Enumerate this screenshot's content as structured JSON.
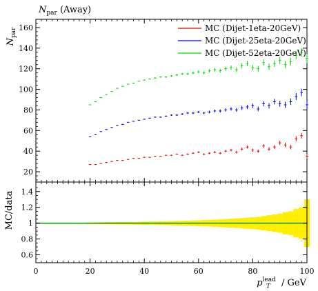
{
  "chart_data": [
    {
      "type": "scatter",
      "title": "N_par (Away)",
      "title_main": "N",
      "title_sub": "par",
      "title_suffix": " (Away)",
      "ylabel_main": "N",
      "ylabel_sub": "par",
      "xlim": [
        0,
        100
      ],
      "ylim": [
        10,
        168
      ],
      "yticks": [
        20,
        40,
        60,
        80,
        100,
        120,
        140,
        160
      ],
      "ytick_labels": [
        "20",
        "40",
        "60",
        "80",
        "100",
        "120",
        "140",
        "160"
      ],
      "grid": false,
      "legend_position": "top-right",
      "series": [
        {
          "name": "MC (Dijet-1eta-20GeV)",
          "color": "#ee0000",
          "x": [
            20,
            22,
            24,
            26,
            28,
            30,
            32,
            34,
            36,
            38,
            40,
            42,
            44,
            46,
            48,
            50,
            52,
            54,
            56,
            58,
            60,
            62,
            64,
            66,
            68,
            70,
            72,
            74,
            76,
            78,
            80,
            82,
            84,
            86,
            88,
            90,
            92,
            94,
            96,
            98,
            100
          ],
          "y": [
            27,
            27,
            28,
            29,
            30,
            31,
            31,
            32,
            33,
            33,
            34,
            34,
            35,
            35,
            36,
            36,
            37,
            36,
            37,
            38,
            39,
            37,
            38,
            39,
            38,
            40,
            41,
            39,
            42,
            44,
            41,
            40,
            45,
            42,
            44,
            48,
            46,
            44,
            52,
            55,
            35
          ]
        },
        {
          "name": "MC (Dijet-25eta-20GeV)",
          "color": "#0000ee",
          "x": [
            20,
            22,
            24,
            26,
            28,
            30,
            32,
            34,
            36,
            38,
            40,
            42,
            44,
            46,
            48,
            50,
            52,
            54,
            56,
            58,
            60,
            62,
            64,
            66,
            68,
            70,
            72,
            74,
            76,
            78,
            80,
            82,
            84,
            86,
            88,
            90,
            92,
            94,
            96,
            98,
            100
          ],
          "y": [
            54,
            56,
            59,
            61,
            63,
            65,
            66,
            68,
            69,
            70,
            71,
            72,
            73,
            73,
            74,
            75,
            75,
            76,
            77,
            77,
            78,
            77,
            78,
            79,
            79,
            80,
            81,
            80,
            82,
            83,
            84,
            81,
            86,
            84,
            88,
            86,
            85,
            88,
            93,
            97,
            85
          ]
        },
        {
          "name": "MC (Dijet-52eta-20GeV)",
          "color": "#00dd00",
          "x": [
            20,
            22,
            24,
            26,
            28,
            30,
            32,
            34,
            36,
            38,
            40,
            42,
            44,
            46,
            48,
            50,
            52,
            54,
            56,
            58,
            60,
            62,
            64,
            66,
            68,
            70,
            72,
            74,
            76,
            78,
            80,
            82,
            84,
            86,
            88,
            90,
            92,
            94,
            96,
            98,
            100
          ],
          "y": [
            85,
            88,
            92,
            95,
            98,
            101,
            103,
            105,
            106,
            108,
            109,
            110,
            111,
            112,
            112,
            113,
            114,
            115,
            115,
            116,
            117,
            116,
            118,
            119,
            118,
            120,
            121,
            119,
            123,
            125,
            121,
            120,
            126,
            122,
            125,
            128,
            124,
            127,
            133,
            136,
            130
          ]
        }
      ]
    },
    {
      "type": "area",
      "ylabel": "MC/data",
      "xlabel_main": "p",
      "xlabel_sub": "T",
      "xlabel_sup": "lead",
      "xlabel_suffix": " / GeV",
      "xlim": [
        0,
        100
      ],
      "ylim": [
        0.5,
        1.52
      ],
      "xticks": [
        0,
        20,
        40,
        60,
        80,
        100
      ],
      "xtick_labels": [
        "0",
        "20",
        "40",
        "60",
        "80",
        "100"
      ],
      "yticks": [
        0.6,
        0.8,
        1,
        1.2,
        1.4
      ],
      "ytick_labels": [
        "0.6",
        "0.8",
        "1",
        "1.2",
        "1.4"
      ],
      "band_color": "#ffee00",
      "reference_line_color": "#008800",
      "band": {
        "x": [
          20,
          22,
          24,
          26,
          28,
          30,
          32,
          34,
          36,
          38,
          40,
          42,
          44,
          46,
          48,
          50,
          52,
          54,
          56,
          58,
          60,
          62,
          64,
          66,
          68,
          70,
          72,
          74,
          76,
          78,
          80,
          82,
          84,
          86,
          88,
          90,
          92,
          94,
          96,
          98,
          100
        ],
        "half_width": [
          0.01,
          0.01,
          0.011,
          0.012,
          0.013,
          0.014,
          0.015,
          0.016,
          0.017,
          0.018,
          0.02,
          0.021,
          0.022,
          0.024,
          0.025,
          0.027,
          0.029,
          0.03,
          0.032,
          0.035,
          0.037,
          0.04,
          0.042,
          0.045,
          0.048,
          0.052,
          0.056,
          0.06,
          0.065,
          0.07,
          0.075,
          0.08,
          0.09,
          0.1,
          0.11,
          0.12,
          0.14,
          0.15,
          0.18,
          0.2,
          0.3
        ]
      }
    }
  ]
}
